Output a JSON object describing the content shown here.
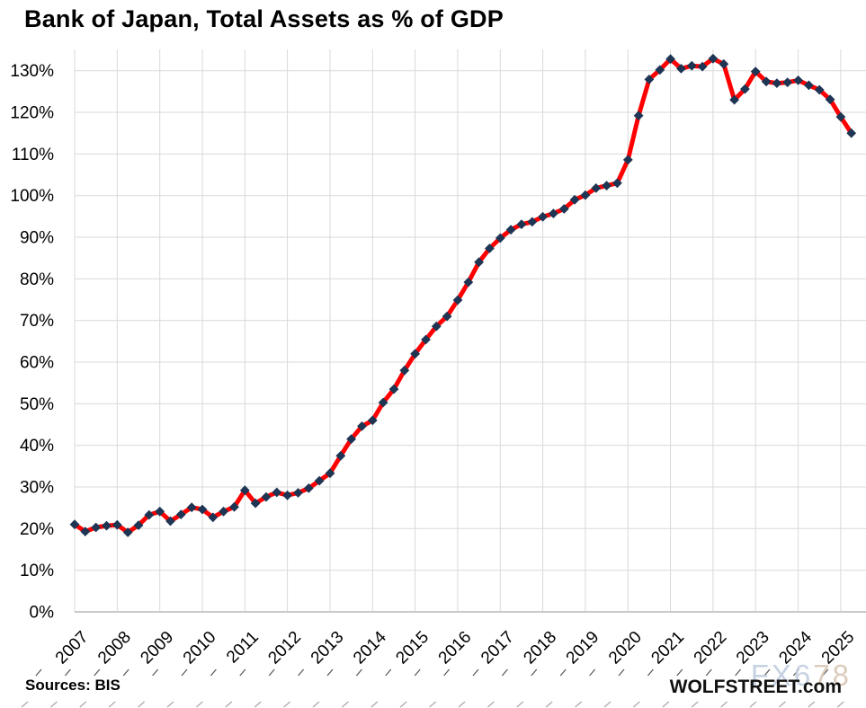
{
  "header": {
    "title": "Bank of Japan, Total Assets as % of GDP"
  },
  "footer": {
    "sources": "Sources: BIS",
    "brand": "WOLFSTREET.com",
    "watermark_parts": [
      {
        "text": "FX6",
        "color": "#c2cedf"
      },
      {
        "text": "78",
        "color": "#d9c7b5"
      }
    ]
  },
  "chart_data": {
    "type": "line",
    "title": "Bank of Japan, Total Assets as % of GDP",
    "xlabel": "",
    "ylabel": "",
    "unit": "%",
    "frequency": "quarterly",
    "start_period": "2007-Q1",
    "end_period": "2025-Q2",
    "grid": true,
    "legend": "none",
    "ylim": [
      0,
      135
    ],
    "y_ticks": [
      0,
      10,
      20,
      30,
      40,
      50,
      60,
      70,
      80,
      90,
      100,
      110,
      120,
      130
    ],
    "y_tick_suffix": "%",
    "years": [
      2007,
      2008,
      2009,
      2010,
      2011,
      2012,
      2013,
      2014,
      2015,
      2016,
      2017,
      2018,
      2019,
      2020,
      2021,
      2022,
      2023,
      2024,
      2025
    ],
    "series": [
      {
        "name": "BoJ total assets as % of GDP",
        "color": "#fe0000",
        "marker": "diamond",
        "marker_color": "#1f3554",
        "values": [
          21.0,
          19.3,
          20.3,
          20.7,
          20.9,
          19.1,
          20.8,
          23.3,
          24.1,
          21.8,
          23.4,
          25.1,
          24.6,
          22.7,
          24.1,
          25.2,
          29.2,
          26.1,
          27.6,
          28.7,
          28.0,
          28.6,
          29.7,
          31.5,
          33.3,
          37.5,
          41.5,
          44.6,
          46.0,
          50.3,
          53.5,
          58.0,
          62.0,
          65.4,
          68.6,
          71.0,
          74.9,
          79.2,
          84.0,
          87.3,
          89.8,
          91.8,
          93.1,
          93.7,
          94.9,
          95.7,
          96.8,
          99.0,
          100.1,
          101.8,
          102.4,
          103.0,
          108.6,
          119.2,
          127.9,
          130.2,
          132.8,
          130.5,
          131.2,
          131.0,
          132.9,
          131.6,
          123.0,
          125.6,
          129.8,
          127.4,
          127.0,
          127.2,
          127.7,
          126.5,
          125.4,
          123.1,
          118.9,
          115.0
        ]
      }
    ],
    "colors": {
      "gridline": "#d9d9d9",
      "axis_line": "#c9c9c9",
      "tick_label": "#000000",
      "background": "#ffffff"
    }
  }
}
